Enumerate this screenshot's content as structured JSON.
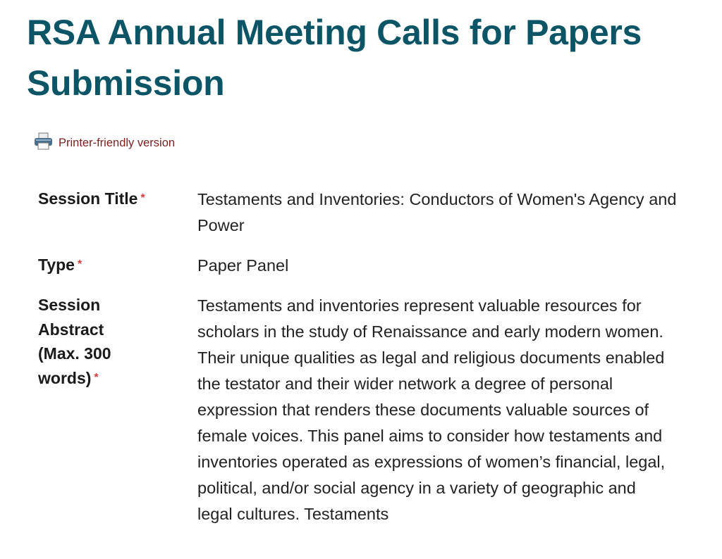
{
  "page": {
    "title": "RSA Annual Meeting Calls for Papers Submission"
  },
  "printer_link": {
    "label": "Printer-friendly version",
    "icon": "printer-icon"
  },
  "required_marker": "*",
  "colors": {
    "title": "#0b5566",
    "link": "#7b1f1f",
    "required": "#d43c3c"
  },
  "fields": [
    {
      "label": "Session Title",
      "value": "Testaments and Inventories: Conductors of Women's Agency and Power"
    },
    {
      "label": "Type",
      "value": "Paper Panel"
    },
    {
      "label": "Session Abstract (Max. 300 words)",
      "value": "Testaments and inventories represent valuable resources for scholars in the study of Renaissance and early modern women. Their unique qualities as legal and religious documents enabled the testator and their wider network a degree of personal expression that renders these documents valuable sources of female voices. This panel aims to consider how testaments and inventories operated as expressions of women’s financial, legal, political, and/or social agency in a variety of geographic and legal cultures. Testaments"
    }
  ]
}
